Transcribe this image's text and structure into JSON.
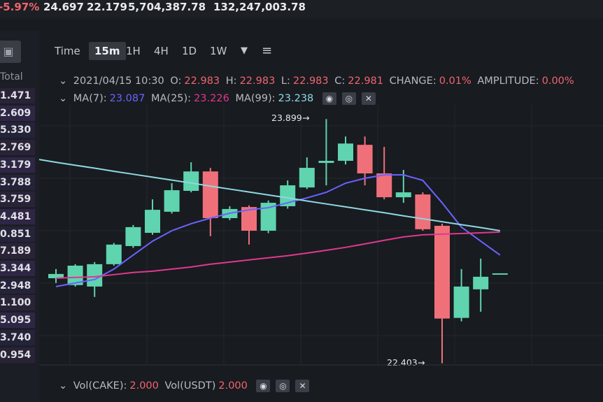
{
  "ticker_bar": {
    "change_pct": "-5.97%",
    "high_24h": "24.697",
    "low_24h": "22.179",
    "volume_base": "5,704,387.78",
    "volume_quote": "132,247,003.78"
  },
  "order_book": {
    "header": "Total",
    "totals": [
      "1.471",
      "2.609",
      "5.330",
      "2.769",
      "3.179",
      "3.788",
      "3.759",
      "4.481",
      "0.851",
      "7.189",
      "3.344",
      "2.948",
      "1.100",
      "5.095",
      "3.740",
      "0.954"
    ]
  },
  "toolbar": {
    "intervals": [
      "Time",
      "15m",
      "1H",
      "4H",
      "1D",
      "1W"
    ],
    "active_interval": "15m",
    "more_icon": "caret-down-icon",
    "settings_icon": "sliders-icon"
  },
  "ohlc_legend": {
    "datetime": "2021/04/15 10:30",
    "o_label": "O:",
    "o": "22.983",
    "h_label": "H:",
    "h": "22.983",
    "l_label": "L:",
    "l": "22.983",
    "c_label": "C:",
    "c": "22.981",
    "change_label": "CHANGE:",
    "change": "0.01%",
    "amplitude_label": "AMPLITUDE:",
    "amplitude": "0.00%"
  },
  "ma_legend": {
    "ma7_label": "MA(7):",
    "ma7": "23.087",
    "ma25_label": "MA(25):",
    "ma25": "23.226",
    "ma99_label": "MA(99):",
    "ma99": "23.238"
  },
  "vol_legend": {
    "vol_base_label": "Vol(CAKE):",
    "vol_base": "2.000",
    "vol_quote_label": "Vol(USDT)",
    "vol_quote": "2.000"
  },
  "colors": {
    "up": "#5fd4ae",
    "down": "#f0707a",
    "ma7": "#6a63ff",
    "ma25": "#e0388f",
    "ma99": "#8ed8e2",
    "background": "#181b20"
  },
  "chart_data": {
    "type": "candlestick",
    "interval": "15m",
    "ylim": [
      22.35,
      23.96
    ],
    "grid": true,
    "annotations": {
      "max": "23.899",
      "min": "22.403"
    },
    "candles": [
      {
        "o": 22.924,
        "h": 22.98,
        "l": 22.895,
        "c": 22.95
      },
      {
        "o": 22.882,
        "h": 23.01,
        "l": 22.873,
        "c": 23.001
      },
      {
        "o": 22.873,
        "h": 23.023,
        "l": 22.809,
        "c": 23.01
      },
      {
        "o": 23.01,
        "h": 23.14,
        "l": 23.001,
        "c": 23.13
      },
      {
        "o": 23.121,
        "h": 23.25,
        "l": 23.11,
        "c": 23.237
      },
      {
        "o": 23.202,
        "h": 23.407,
        "l": 23.19,
        "c": 23.343
      },
      {
        "o": 23.331,
        "h": 23.506,
        "l": 23.32,
        "c": 23.463
      },
      {
        "o": 23.459,
        "h": 23.634,
        "l": 23.45,
        "c": 23.578
      },
      {
        "o": 23.578,
        "h": 23.6,
        "l": 23.181,
        "c": 23.292
      },
      {
        "o": 23.292,
        "h": 23.365,
        "l": 23.28,
        "c": 23.348
      },
      {
        "o": 23.36,
        "h": 23.37,
        "l": 23.13,
        "c": 23.215
      },
      {
        "o": 23.215,
        "h": 23.4,
        "l": 23.2,
        "c": 23.386
      },
      {
        "o": 23.365,
        "h": 23.523,
        "l": 23.35,
        "c": 23.493
      },
      {
        "o": 23.48,
        "h": 23.664,
        "l": 23.47,
        "c": 23.6
      },
      {
        "o": 23.63,
        "h": 23.899,
        "l": 23.493,
        "c": 23.643
      },
      {
        "o": 23.643,
        "h": 23.792,
        "l": 23.621,
        "c": 23.749
      },
      {
        "o": 23.741,
        "h": 23.792,
        "l": 23.493,
        "c": 23.566
      },
      {
        "o": 23.566,
        "h": 23.728,
        "l": 23.407,
        "c": 23.42
      },
      {
        "o": 23.42,
        "h": 23.587,
        "l": 23.386,
        "c": 23.45
      },
      {
        "o": 23.437,
        "h": 23.45,
        "l": 23.215,
        "c": 23.224
      },
      {
        "o": 23.245,
        "h": 23.258,
        "l": 22.403,
        "c": 22.677
      },
      {
        "o": 22.681,
        "h": 22.98,
        "l": 22.66,
        "c": 22.873
      },
      {
        "o": 22.856,
        "h": 23.044,
        "l": 22.719,
        "c": 22.933
      },
      {
        "o": 22.954,
        "h": 22.954,
        "l": 22.954,
        "c": 22.954
      }
    ],
    "series": [
      {
        "name": "MA(7)",
        "values": [
          22.873,
          22.895,
          22.916,
          22.98,
          23.066,
          23.151,
          23.215,
          23.258,
          23.292,
          23.322,
          23.343,
          23.356,
          23.386,
          23.416,
          23.45,
          23.506,
          23.536,
          23.557,
          23.557,
          23.523,
          23.386,
          23.237,
          23.151,
          23.066
        ]
      },
      {
        "name": "MA(25)",
        "values": [
          22.924,
          22.929,
          22.933,
          22.946,
          22.959,
          22.967,
          22.98,
          22.993,
          23.01,
          23.023,
          23.036,
          23.049,
          23.062,
          23.078,
          23.095,
          23.113,
          23.134,
          23.156,
          23.177,
          23.19,
          23.194,
          23.198,
          23.202,
          23.207
        ]
      },
      {
        "name": "MA(99)",
        "values": [
          23.634,
          23.616,
          23.598,
          23.579,
          23.561,
          23.543,
          23.525,
          23.507,
          23.488,
          23.47,
          23.452,
          23.434,
          23.416,
          23.397,
          23.379,
          23.361,
          23.343,
          23.325,
          23.306,
          23.288,
          23.27,
          23.252,
          23.234,
          23.215
        ]
      }
    ]
  }
}
